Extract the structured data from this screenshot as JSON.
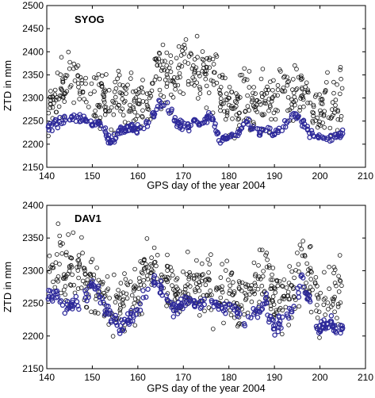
{
  "chart_data": [
    {
      "type": "scatter",
      "title": "SYOG",
      "xlabel": "GPS day of the year 2004",
      "ylabel": "ZTD in mm",
      "xlim": [
        140,
        210
      ],
      "ylim": [
        2150,
        2500
      ],
      "xticks": [
        140,
        150,
        160,
        170,
        180,
        190,
        200,
        210
      ],
      "yticks": [
        2150,
        2200,
        2250,
        2300,
        2350,
        2400,
        2450,
        2500
      ],
      "grid": false,
      "colors": {
        "black_series": "#111111",
        "blue_series": "#2e2a9a"
      },
      "series": [
        {
          "color": "#111111",
          "marker": "open-circle",
          "x": [
            140.5,
            142,
            144,
            146,
            148,
            150,
            152,
            154,
            156,
            158,
            160,
            162,
            164,
            166,
            168,
            170,
            172,
            174,
            176,
            178,
            180,
            182,
            184,
            186,
            188,
            190,
            192,
            194,
            196,
            198,
            200,
            202,
            204,
            205
          ],
          "y": [
            2270,
            2310,
            2320,
            2350,
            2330,
            2310,
            2300,
            2290,
            2300,
            2290,
            2285,
            2290,
            2360,
            2360,
            2340,
            2370,
            2360,
            2350,
            2370,
            2300,
            2290,
            2290,
            2300,
            2290,
            2300,
            2300,
            2330,
            2310,
            2310,
            2300,
            2270,
            2280,
            2300,
            2310
          ],
          "spread": [
            50,
            60,
            60,
            60,
            55,
            55,
            50,
            50,
            55,
            50,
            50,
            55,
            60,
            60,
            55,
            60,
            55,
            55,
            60,
            55,
            50,
            55,
            55,
            50,
            55,
            55,
            60,
            55,
            55,
            55,
            50,
            55,
            55,
            55
          ]
        },
        {
          "color": "#2e2a9a",
          "marker": "open-circle",
          "x": [
            140.5,
            142,
            144,
            146,
            148,
            150,
            152,
            154,
            156,
            158,
            160,
            162,
            164,
            166,
            168,
            170,
            172,
            174,
            176,
            178,
            180,
            182,
            184,
            186,
            188,
            190,
            192,
            194,
            196,
            198,
            200,
            202,
            204,
            205
          ],
          "y": [
            2235,
            2245,
            2250,
            2260,
            2255,
            2245,
            2240,
            2205,
            2225,
            2235,
            2235,
            2240,
            2280,
            2295,
            2255,
            2235,
            2245,
            2240,
            2265,
            2210,
            2215,
            2225,
            2250,
            2225,
            2230,
            2220,
            2240,
            2265,
            2250,
            2220,
            2215,
            2210,
            2220,
            2225
          ],
          "spread": [
            12,
            12,
            12,
            12,
            12,
            12,
            14,
            15,
            14,
            12,
            12,
            14,
            14,
            14,
            14,
            14,
            12,
            12,
            14,
            10,
            10,
            12,
            12,
            12,
            12,
            12,
            12,
            14,
            14,
            12,
            10,
            10,
            12,
            12
          ]
        }
      ]
    },
    {
      "type": "scatter",
      "title": "DAV1",
      "xlabel": "GPS day of the year 2004",
      "ylabel": "ZTD in mm",
      "xlim": [
        140,
        210
      ],
      "ylim": [
        2150,
        2400
      ],
      "xticks": [
        140,
        150,
        160,
        170,
        180,
        190,
        200,
        210
      ],
      "yticks": [
        2150,
        2200,
        2250,
        2300,
        2350,
        2400
      ],
      "grid": false,
      "colors": {
        "black_series": "#111111",
        "blue_series": "#2e2a9a"
      },
      "series": [
        {
          "color": "#111111",
          "marker": "open-circle",
          "x": [
            140.5,
            142,
            144,
            146,
            148,
            150,
            152,
            154,
            156,
            158,
            160,
            162,
            164,
            166,
            168,
            170,
            172,
            174,
            176,
            178,
            180,
            182,
            184,
            186,
            188,
            190,
            192,
            194,
            196,
            198,
            200,
            202,
            204,
            205
          ],
          "y": [
            2300,
            2310,
            2290,
            2310,
            2300,
            2280,
            2270,
            2250,
            2250,
            2250,
            2270,
            2300,
            2310,
            2290,
            2260,
            2270,
            2280,
            2270,
            2275,
            2265,
            2270,
            2260,
            2250,
            2270,
            2290,
            2260,
            2260,
            2275,
            2300,
            2290,
            2240,
            2260,
            2270,
            2280
          ],
          "spread": [
            40,
            45,
            45,
            45,
            40,
            40,
            40,
            40,
            40,
            40,
            40,
            40,
            40,
            40,
            40,
            40,
            40,
            40,
            40,
            40,
            40,
            40,
            40,
            40,
            45,
            40,
            40,
            40,
            45,
            40,
            40,
            40,
            40,
            40
          ]
        },
        {
          "color": "#2e2a9a",
          "marker": "open-circle",
          "x": [
            140.5,
            142,
            144,
            146,
            148,
            150,
            152,
            154,
            156,
            158,
            160,
            162,
            164,
            166,
            168,
            170,
            172,
            174,
            176,
            178,
            180,
            182,
            184,
            186,
            188,
            190,
            192,
            194,
            196,
            198,
            200,
            202,
            204,
            205
          ],
          "y": [
            2260,
            2265,
            2240,
            2250,
            2260,
            2280,
            2260,
            2230,
            2215,
            2225,
            2240,
            2270,
            2285,
            2265,
            2240,
            2250,
            2255,
            2250,
            2260,
            2240,
            2250,
            2235,
            2220,
            2235,
            2255,
            2210,
            2225,
            2240,
            2290,
            2250,
            2210,
            2225,
            2205,
            2215
          ],
          "spread": [
            14,
            14,
            16,
            16,
            16,
            16,
            16,
            18,
            18,
            16,
            14,
            14,
            12,
            14,
            14,
            14,
            12,
            12,
            12,
            14,
            14,
            16,
            16,
            16,
            16,
            18,
            16,
            16,
            16,
            18,
            16,
            16,
            12,
            12
          ]
        }
      ]
    }
  ]
}
